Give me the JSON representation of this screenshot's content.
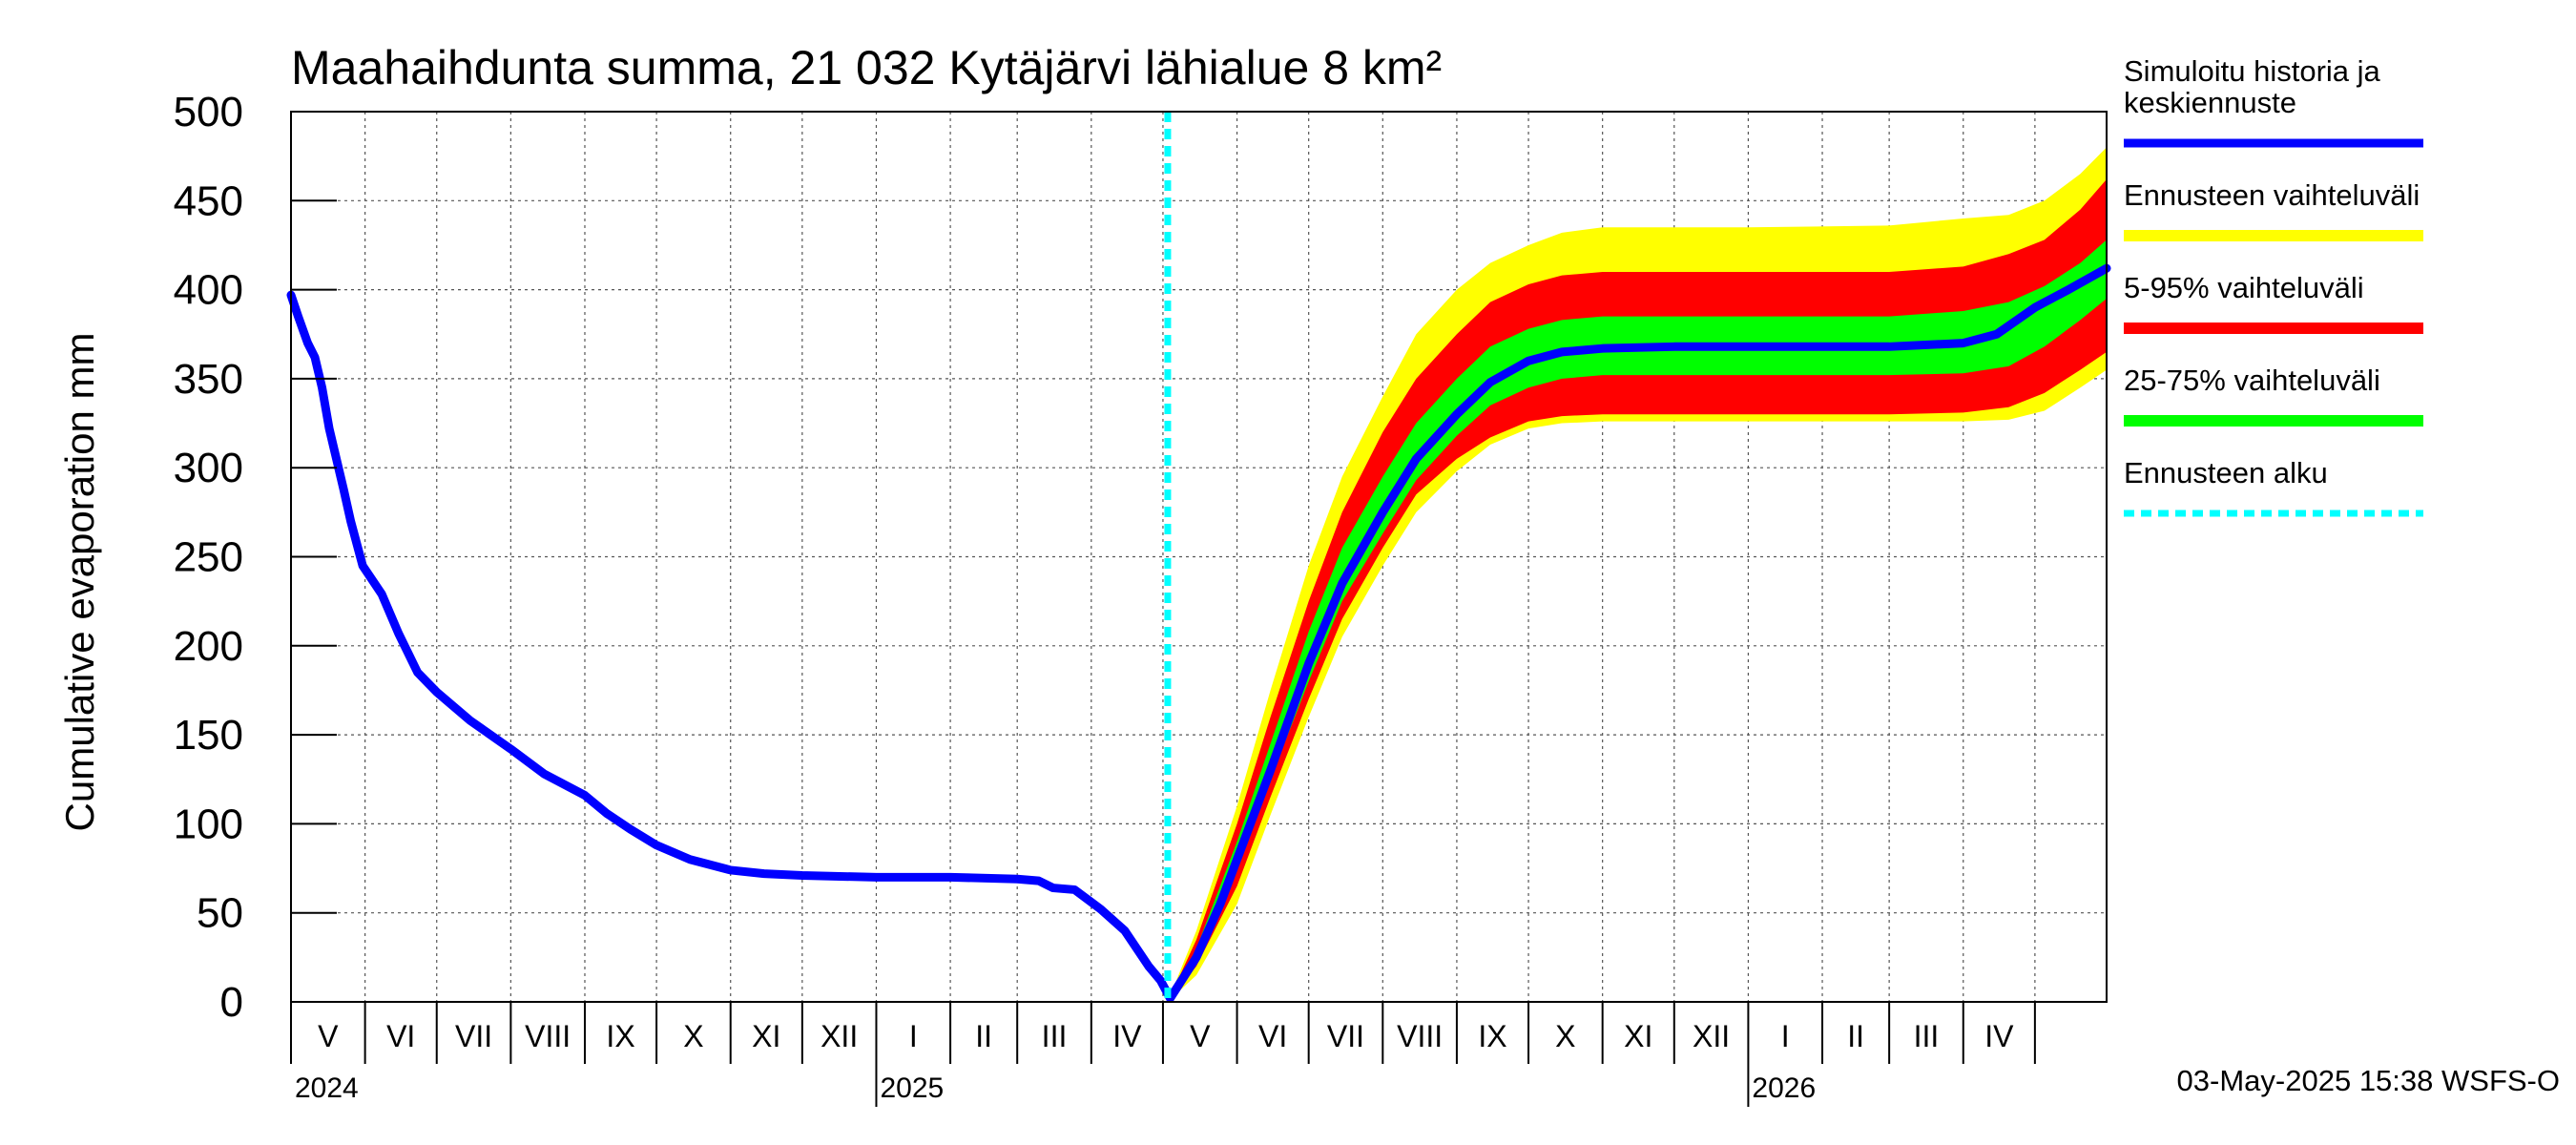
{
  "chart_data": {
    "type": "area",
    "title": "Maahaihdunta summa, 21 032 Kytäjärvi lähialue 8 km²",
    "ylabel": "Cumulative evaporation   mm",
    "xlabel": "",
    "ylim": [
      0,
      500
    ],
    "yticks": [
      0,
      50,
      100,
      150,
      200,
      250,
      300,
      350,
      400,
      450,
      500
    ],
    "xlim": [
      "2024-05-01",
      "2026-05-31"
    ],
    "grid": true,
    "forecast_start": "2025-05-03",
    "months": [
      "V",
      "VI",
      "VII",
      "VIII",
      "IX",
      "X",
      "XI",
      "XII",
      "I",
      "II",
      "III",
      "IV",
      "V",
      "VI",
      "VII",
      "VIII",
      "IX",
      "X",
      "XI",
      "XII",
      "I",
      "II",
      "III",
      "IV"
    ],
    "years": [
      {
        "label": "2024",
        "date": "2024-05-01"
      },
      {
        "label": "2025",
        "date": "2025-01-01"
      },
      {
        "label": "2026",
        "date": "2026-01-01"
      }
    ],
    "legend_position": "right",
    "legend": [
      {
        "label": "Simuloitu historia ja keskiennuste",
        "color": "#0000ff",
        "style": "line"
      },
      {
        "label": "Ennusteen vaihteluväli",
        "color": "#ffff00",
        "style": "band"
      },
      {
        "label": "5-95% vaihteluväli",
        "color": "#ff0000",
        "style": "band"
      },
      {
        "label": "25-75% vaihteluväli",
        "color": "#00ff00",
        "style": "band"
      },
      {
        "label": "Ennusteen alku",
        "color": "#00ffff",
        "style": "dashed"
      }
    ],
    "series": [
      {
        "name": "Simuloitu historia ja keskiennuste",
        "color": "#0000ff",
        "points": [
          [
            "2024-05-01",
            397
          ],
          [
            "2024-05-04",
            385
          ],
          [
            "2024-05-08",
            370
          ],
          [
            "2024-05-11",
            362
          ],
          [
            "2024-05-14",
            345
          ],
          [
            "2024-05-17",
            322
          ],
          [
            "2024-05-20",
            305
          ],
          [
            "2024-05-23",
            288
          ],
          [
            "2024-05-26",
            270
          ],
          [
            "2024-05-31",
            245
          ],
          [
            "2024-06-08",
            229
          ],
          [
            "2024-06-15",
            207
          ],
          [
            "2024-06-23",
            185
          ],
          [
            "2024-07-01",
            174
          ],
          [
            "2024-07-15",
            158
          ],
          [
            "2024-08-01",
            142
          ],
          [
            "2024-08-15",
            128
          ],
          [
            "2024-09-01",
            116
          ],
          [
            "2024-09-10",
            106
          ],
          [
            "2024-09-20",
            97
          ],
          [
            "2024-10-01",
            88
          ],
          [
            "2024-10-15",
            80
          ],
          [
            "2024-11-01",
            74
          ],
          [
            "2024-11-15",
            72
          ],
          [
            "2024-12-01",
            71
          ],
          [
            "2025-01-01",
            70
          ],
          [
            "2025-02-01",
            70
          ],
          [
            "2025-03-01",
            69
          ],
          [
            "2025-03-10",
            68
          ],
          [
            "2025-03-16",
            64
          ],
          [
            "2025-03-25",
            63
          ],
          [
            "2025-04-05",
            52
          ],
          [
            "2025-04-15",
            40
          ],
          [
            "2025-04-25",
            20
          ],
          [
            "2025-04-30",
            12
          ],
          [
            "2025-05-04",
            2
          ],
          [
            "2025-05-15",
            25
          ],
          [
            "2025-05-25",
            55
          ],
          [
            "2025-06-01",
            80
          ],
          [
            "2025-06-15",
            130
          ],
          [
            "2025-07-01",
            190
          ],
          [
            "2025-07-15",
            235
          ],
          [
            "2025-08-01",
            275
          ],
          [
            "2025-08-15",
            305
          ],
          [
            "2025-09-01",
            330
          ],
          [
            "2025-09-15",
            348
          ],
          [
            "2025-10-01",
            360
          ],
          [
            "2025-10-15",
            365
          ],
          [
            "2025-11-01",
            367
          ],
          [
            "2025-12-01",
            368
          ],
          [
            "2026-01-01",
            368
          ],
          [
            "2026-02-01",
            368
          ],
          [
            "2026-03-01",
            368
          ],
          [
            "2026-04-01",
            370
          ],
          [
            "2026-04-15",
            375
          ],
          [
            "2026-05-01",
            390
          ],
          [
            "2026-05-15",
            400
          ],
          [
            "2026-05-31",
            412
          ]
        ]
      }
    ],
    "bands": [
      {
        "name": "Ennusteen vaihteluväli",
        "color": "#ffff00",
        "upper": [
          [
            "2025-05-03",
            0
          ],
          [
            "2025-05-15",
            40
          ],
          [
            "2025-06-01",
            110
          ],
          [
            "2025-06-15",
            175
          ],
          [
            "2025-07-01",
            245
          ],
          [
            "2025-07-15",
            295
          ],
          [
            "2025-08-01",
            340
          ],
          [
            "2025-08-15",
            375
          ],
          [
            "2025-09-01",
            400
          ],
          [
            "2025-09-15",
            415
          ],
          [
            "2025-10-01",
            425
          ],
          [
            "2025-10-15",
            432
          ],
          [
            "2025-11-01",
            435
          ],
          [
            "2026-01-01",
            435
          ],
          [
            "2026-03-01",
            436
          ],
          [
            "2026-04-01",
            440
          ],
          [
            "2026-04-20",
            442
          ],
          [
            "2026-05-05",
            450
          ],
          [
            "2026-05-20",
            465
          ],
          [
            "2026-05-31",
            480
          ]
        ],
        "lower": [
          [
            "2025-05-03",
            0
          ],
          [
            "2025-05-15",
            15
          ],
          [
            "2025-06-01",
            55
          ],
          [
            "2025-06-15",
            105
          ],
          [
            "2025-07-01",
            160
          ],
          [
            "2025-07-15",
            205
          ],
          [
            "2025-08-01",
            245
          ],
          [
            "2025-08-15",
            275
          ],
          [
            "2025-09-01",
            298
          ],
          [
            "2025-09-15",
            313
          ],
          [
            "2025-10-01",
            322
          ],
          [
            "2025-10-15",
            325
          ],
          [
            "2025-11-01",
            326
          ],
          [
            "2026-01-01",
            326
          ],
          [
            "2026-03-01",
            326
          ],
          [
            "2026-04-01",
            326
          ],
          [
            "2026-04-20",
            327
          ],
          [
            "2026-05-05",
            332
          ],
          [
            "2026-05-20",
            345
          ],
          [
            "2026-05-31",
            355
          ]
        ]
      },
      {
        "name": "5-95% vaihteluväli",
        "color": "#ff0000",
        "upper": [
          [
            "2025-05-03",
            0
          ],
          [
            "2025-05-15",
            35
          ],
          [
            "2025-06-01",
            100
          ],
          [
            "2025-06-15",
            160
          ],
          [
            "2025-07-01",
            225
          ],
          [
            "2025-07-15",
            275
          ],
          [
            "2025-08-01",
            320
          ],
          [
            "2025-08-15",
            350
          ],
          [
            "2025-09-01",
            375
          ],
          [
            "2025-09-15",
            393
          ],
          [
            "2025-10-01",
            403
          ],
          [
            "2025-10-15",
            408
          ],
          [
            "2025-11-01",
            410
          ],
          [
            "2026-01-01",
            410
          ],
          [
            "2026-03-01",
            410
          ],
          [
            "2026-04-01",
            413
          ],
          [
            "2026-04-20",
            420
          ],
          [
            "2026-05-05",
            428
          ],
          [
            "2026-05-20",
            445
          ],
          [
            "2026-05-31",
            462
          ]
        ],
        "lower": [
          [
            "2025-05-03",
            0
          ],
          [
            "2025-05-15",
            20
          ],
          [
            "2025-06-01",
            65
          ],
          [
            "2025-06-15",
            115
          ],
          [
            "2025-07-01",
            170
          ],
          [
            "2025-07-15",
            215
          ],
          [
            "2025-08-01",
            255
          ],
          [
            "2025-08-15",
            285
          ],
          [
            "2025-09-01",
            305
          ],
          [
            "2025-09-15",
            317
          ],
          [
            "2025-10-01",
            326
          ],
          [
            "2025-10-15",
            329
          ],
          [
            "2025-11-01",
            330
          ],
          [
            "2026-01-01",
            330
          ],
          [
            "2026-03-01",
            330
          ],
          [
            "2026-04-01",
            331
          ],
          [
            "2026-04-20",
            334
          ],
          [
            "2026-05-05",
            342
          ],
          [
            "2026-05-20",
            355
          ],
          [
            "2026-05-31",
            365
          ]
        ]
      },
      {
        "name": "25-75% vaihteluväli",
        "color": "#00ff00",
        "upper": [
          [
            "2025-05-03",
            0
          ],
          [
            "2025-05-15",
            30
          ],
          [
            "2025-06-01",
            90
          ],
          [
            "2025-06-15",
            145
          ],
          [
            "2025-07-01",
            208
          ],
          [
            "2025-07-15",
            255
          ],
          [
            "2025-08-01",
            295
          ],
          [
            "2025-08-15",
            325
          ],
          [
            "2025-09-01",
            350
          ],
          [
            "2025-09-15",
            368
          ],
          [
            "2025-10-01",
            378
          ],
          [
            "2025-10-15",
            383
          ],
          [
            "2025-11-01",
            385
          ],
          [
            "2026-01-01",
            385
          ],
          [
            "2026-03-01",
            385
          ],
          [
            "2026-04-01",
            388
          ],
          [
            "2026-04-20",
            393
          ],
          [
            "2026-05-05",
            402
          ],
          [
            "2026-05-20",
            415
          ],
          [
            "2026-05-31",
            428
          ]
        ],
        "lower": [
          [
            "2025-05-03",
            0
          ],
          [
            "2025-05-15",
            23
          ],
          [
            "2025-06-01",
            75
          ],
          [
            "2025-06-15",
            125
          ],
          [
            "2025-07-01",
            180
          ],
          [
            "2025-07-15",
            225
          ],
          [
            "2025-08-01",
            263
          ],
          [
            "2025-08-15",
            293
          ],
          [
            "2025-09-01",
            318
          ],
          [
            "2025-09-15",
            335
          ],
          [
            "2025-10-01",
            345
          ],
          [
            "2025-10-15",
            350
          ],
          [
            "2025-11-01",
            352
          ],
          [
            "2026-01-01",
            352
          ],
          [
            "2026-03-01",
            352
          ],
          [
            "2026-04-01",
            353
          ],
          [
            "2026-04-20",
            357
          ],
          [
            "2026-05-05",
            368
          ],
          [
            "2026-05-20",
            383
          ],
          [
            "2026-05-31",
            395
          ]
        ]
      }
    ]
  },
  "footer": {
    "timestamp": "03-May-2025 15:38 WSFS-O"
  }
}
